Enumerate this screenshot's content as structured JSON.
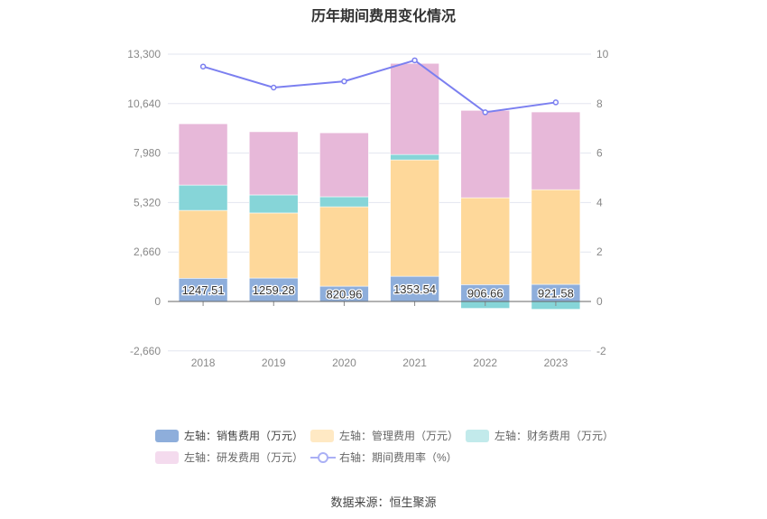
{
  "chart_data": {
    "type": "bar",
    "title": "历年期间费用变化情况",
    "categories": [
      "2018",
      "2019",
      "2020",
      "2021",
      "2022",
      "2023"
    ],
    "stacked": true,
    "left_axis": {
      "ylim": [
        -2660,
        13300
      ],
      "ticks": [
        "-2,660",
        "0",
        "2,660",
        "5,320",
        "7,980",
        "10,640",
        "13,300"
      ]
    },
    "right_axis": {
      "ylim": [
        -2,
        10
      ],
      "ticks": [
        "-2",
        "0",
        "2",
        "4",
        "6",
        "8",
        "10"
      ]
    },
    "grid": true,
    "legend_position": "bottom",
    "series": [
      {
        "name": "左轴：销售费用（万元）",
        "color": "#8eaedb",
        "axis": "left",
        "type": "bar",
        "values": [
          1247.51,
          1259.28,
          820.96,
          1353.54,
          906.66,
          921.58
        ],
        "labels": [
          "1247.51",
          "1259.28",
          "820.96",
          "1353.54",
          "906.66",
          "921.58"
        ]
      },
      {
        "name": "左轴：管理费用（万元）",
        "color": "#fed89a",
        "axis": "left",
        "type": "bar",
        "values": [
          3650,
          3500,
          4270,
          6260,
          4670,
          5090
        ]
      },
      {
        "name": "左轴：财务费用（万元）",
        "color": "#86d5d8",
        "axis": "left",
        "type": "bar",
        "values": [
          1360,
          970,
          540,
          290,
          -370,
          -420
        ]
      },
      {
        "name": "左轴：研发费用（万元）",
        "color": "#e7b8d9",
        "axis": "left",
        "type": "bar",
        "values": [
          3300,
          3400,
          3440,
          4900,
          4700,
          4180
        ]
      },
      {
        "name": "右轴：期间费用率（%）",
        "color": "#7b7ff0",
        "axis": "right",
        "type": "line",
        "values": [
          9.5,
          8.65,
          8.9,
          9.75,
          7.65,
          8.05
        ]
      }
    ],
    "legend_colors": [
      "#8eaedb",
      "#ffe9c4",
      "#c2eaeb",
      "#f4dbee",
      "#7b7ff0"
    ]
  },
  "source": "数据来源：恒生聚源"
}
